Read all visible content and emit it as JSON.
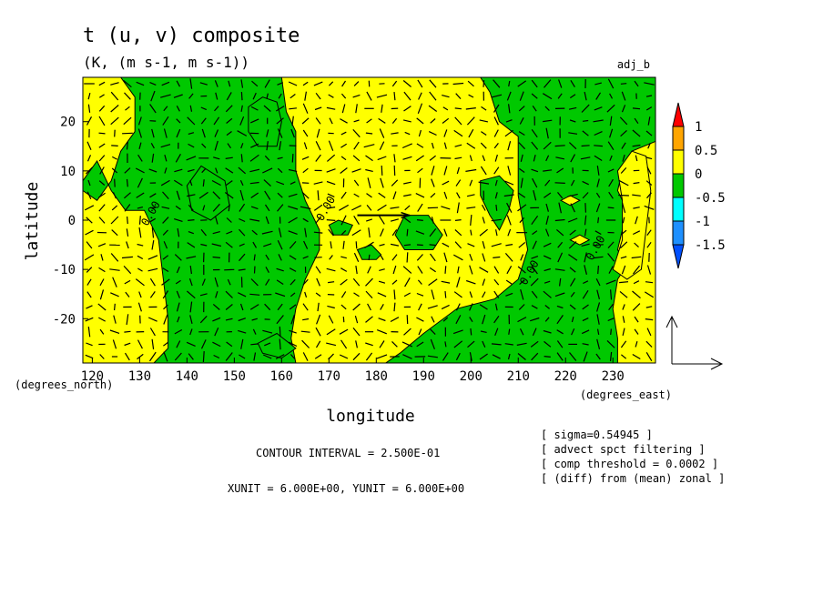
{
  "header": {
    "title": "t (u, v) composite",
    "subtitle": "(K, (m s-1, m s-1))",
    "tag": "adj_b"
  },
  "info": {
    "contour_interval": "CONTOUR INTERVAL = 2.500E-01",
    "units": "XUNIT = 6.000E+00, YUNIT = 6.000E+00",
    "notes": [
      "[ sigma=0.54945 ]",
      "[ advect spct filtering ]",
      "[ comp threshold = 0.0002 ]",
      "[ (diff) from (mean) zonal ]"
    ]
  },
  "colors": {
    "background": "#ffffff",
    "positive_fill": "#ffff00",
    "negative_fill": "#00c800",
    "contour_line": "#000000"
  },
  "chart_data": {
    "type": "heatmap",
    "variant": "filled contour with wind vector overlay",
    "xlabel": "longitude",
    "ylabel": "latitude",
    "x_unit_label": "(degrees_east)",
    "y_unit_label": "(degrees_north)",
    "xlim": [
      118,
      239
    ],
    "ylim": [
      -29,
      29
    ],
    "x_ticks": [
      120,
      130,
      140,
      150,
      160,
      170,
      180,
      190,
      200,
      210,
      220,
      230
    ],
    "y_ticks": [
      20,
      10,
      0,
      -10,
      -20
    ],
    "contour_label": "0.00",
    "contour_label_positions": [
      [
        133,
        1
      ],
      [
        170,
        2
      ],
      [
        213,
        -11
      ],
      [
        227,
        -6
      ]
    ],
    "colorbar": {
      "ticks": [
        "1",
        "0.5",
        "0",
        "-0.5",
        "-1",
        "-1.5"
      ],
      "bands": [
        {
          "range": [
            1,
            1.25
          ],
          "color": "#ff0000"
        },
        {
          "range": [
            0.5,
            1
          ],
          "color": "#ffa500"
        },
        {
          "range": [
            0,
            0.5
          ],
          "color": "#ffff00"
        },
        {
          "range": [
            -0.5,
            0
          ],
          "color": "#00c800"
        },
        {
          "range": [
            -1,
            -0.5
          ],
          "color": "#00ffff"
        },
        {
          "range": [
            -1.5,
            -1
          ],
          "color": "#1e90ff"
        },
        {
          "range": [
            -1.75,
            -1.5
          ],
          "color": "#0050ff"
        }
      ]
    },
    "negative_regions": [
      {
        "name": "western_band",
        "points": [
          [
            126,
            29
          ],
          [
            129,
            25
          ],
          [
            129,
            18
          ],
          [
            126,
            14
          ],
          [
            124,
            8
          ],
          [
            121,
            4
          ],
          [
            118,
            6
          ],
          [
            118,
            8
          ],
          [
            121,
            12
          ],
          [
            124,
            6
          ],
          [
            127,
            2
          ],
          [
            131,
            2
          ],
          [
            134,
            -4
          ],
          [
            135,
            -12
          ],
          [
            136,
            -20
          ],
          [
            136,
            -26
          ],
          [
            133,
            -29
          ],
          [
            163,
            -29
          ],
          [
            162,
            -24
          ],
          [
            163,
            -18
          ],
          [
            165,
            -12
          ],
          [
            168,
            -6
          ],
          [
            168,
            -2
          ],
          [
            165,
            4
          ],
          [
            163,
            10
          ],
          [
            163,
            18
          ],
          [
            161,
            22
          ],
          [
            160,
            29
          ]
        ]
      },
      {
        "name": "eastern_band",
        "points": [
          [
            202,
            29
          ],
          [
            204,
            26
          ],
          [
            206,
            20
          ],
          [
            210,
            17
          ],
          [
            210,
            5
          ],
          [
            212,
            -6
          ],
          [
            210,
            -12
          ],
          [
            205,
            -16
          ],
          [
            197,
            -18
          ],
          [
            190,
            -23
          ],
          [
            185,
            -27
          ],
          [
            182,
            -29
          ],
          [
            231,
            -29
          ],
          [
            231,
            -24
          ],
          [
            230,
            -18
          ],
          [
            231,
            -12
          ],
          [
            233,
            -9
          ],
          [
            231,
            -6
          ],
          [
            232,
            -2
          ],
          [
            233,
            2
          ],
          [
            231,
            6
          ],
          [
            232,
            10
          ],
          [
            234,
            14
          ],
          [
            239,
            16
          ],
          [
            239,
            29
          ]
        ]
      },
      {
        "name": "cell_157_20",
        "points": [
          [
            153,
            23
          ],
          [
            156,
            25
          ],
          [
            159,
            24
          ],
          [
            160,
            20
          ],
          [
            159,
            15
          ],
          [
            155,
            15
          ],
          [
            153,
            18
          ]
        ]
      },
      {
        "name": "cell_145_7",
        "points": [
          [
            140,
            7
          ],
          [
            143,
            11
          ],
          [
            148,
            8
          ],
          [
            149,
            3
          ],
          [
            145,
            0
          ],
          [
            141,
            2
          ]
        ]
      },
      {
        "name": "cell_203_7",
        "points": [
          [
            202,
            8
          ],
          [
            206,
            9
          ],
          [
            209,
            6
          ],
          [
            208,
            2
          ],
          [
            206,
            -2
          ],
          [
            204,
            1
          ],
          [
            202,
            5
          ]
        ]
      },
      {
        "name": "cell_190_-2",
        "points": [
          [
            184,
            -3
          ],
          [
            186,
            1
          ],
          [
            191,
            1
          ],
          [
            194,
            -3
          ],
          [
            192,
            -6
          ],
          [
            186,
            -6
          ]
        ]
      },
      {
        "name": "cell_174_-1",
        "points": [
          [
            170,
            -1
          ],
          [
            172,
            0
          ],
          [
            175,
            -1
          ],
          [
            174,
            -3
          ],
          [
            171,
            -3
          ]
        ]
      },
      {
        "name": "cell_179_-7",
        "points": [
          [
            176,
            -6
          ],
          [
            179,
            -5
          ],
          [
            181,
            -7
          ],
          [
            180,
            -8
          ],
          [
            177,
            -8
          ]
        ]
      },
      {
        "name": "cell_158_-25",
        "points": [
          [
            155,
            -25
          ],
          [
            159,
            -23
          ],
          [
            163,
            -26
          ],
          [
            160,
            -28
          ],
          [
            156,
            -27
          ]
        ]
      }
    ],
    "positive_regions_inside_negative": [
      {
        "name": "eastern_hole",
        "points": [
          [
            221,
            -4
          ],
          [
            223,
            -3
          ],
          [
            225,
            -4
          ],
          [
            223,
            -5
          ]
        ]
      },
      {
        "name": "eastern_hole_2",
        "points": [
          [
            219,
            4
          ],
          [
            221,
            5
          ],
          [
            223,
            4
          ],
          [
            221,
            3
          ]
        ]
      },
      {
        "name": "right_edge_blob",
        "points": [
          [
            230,
            -10
          ],
          [
            232,
            -4
          ],
          [
            232,
            4
          ],
          [
            231,
            10
          ],
          [
            234,
            14
          ],
          [
            237,
            13
          ],
          [
            238,
            6
          ],
          [
            237,
            -2
          ],
          [
            236,
            -10
          ],
          [
            233,
            -12
          ]
        ]
      }
    ],
    "vector_reference": {
      "u": 6.0,
      "v": 6.0
    }
  }
}
